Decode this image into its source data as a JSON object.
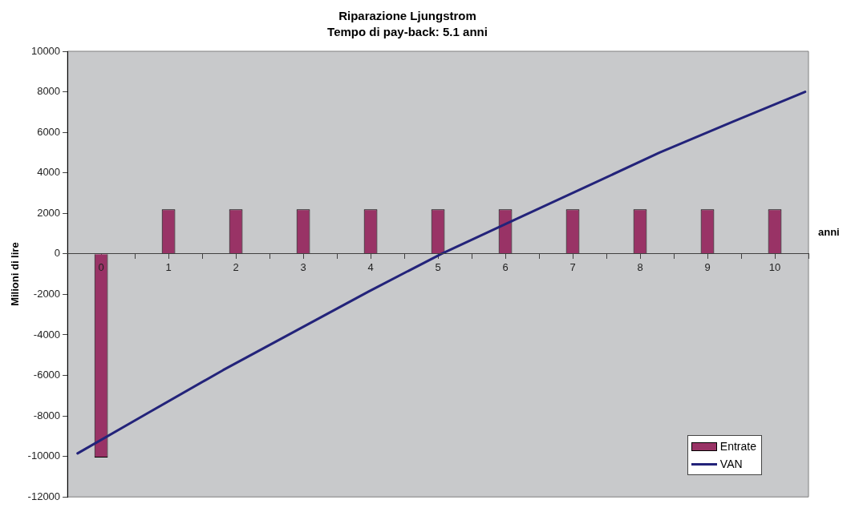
{
  "chart_data": {
    "type": "bar",
    "title": "Riparazione Ljungstrom",
    "subtitle": "Tempo di pay-back: 5.1 anni",
    "xlabel": "anni",
    "ylabel": "Milioni di lire",
    "x": [
      0,
      1,
      2,
      3,
      4,
      5,
      6,
      7,
      8,
      9,
      10
    ],
    "series": [
      {
        "name": "Entrate",
        "color": "#993366",
        "values": [
          -10050,
          2200,
          2200,
          2200,
          2200,
          2200,
          2200,
          2200,
          2200,
          2200,
          2200
        ]
      },
      {
        "name": "VAN",
        "type": "line",
        "color": "#23237a",
        "x": [
          -0.35,
          0.73,
          1.81,
          2.89,
          3.97,
          5.05,
          6.13,
          7.21,
          8.29,
          9.37,
          10.45
        ],
        "values": [
          -9850,
          -7790,
          -5740,
          -3800,
          -1860,
          0,
          1670,
          3330,
          5000,
          6510,
          8000
        ]
      }
    ],
    "xlim": [
      -0.5,
      10.5
    ],
    "xticks": [
      {
        "value": -0.5,
        "label": null
      },
      0,
      {
        "value": 0.5,
        "label": null
      },
      1,
      {
        "value": 1.5,
        "label": null
      },
      2,
      {
        "value": 2.5,
        "label": null
      },
      3,
      {
        "value": 3.5,
        "label": null
      },
      4,
      {
        "value": 4.5,
        "label": null
      },
      5,
      {
        "value": 5.5,
        "label": null
      },
      6,
      {
        "value": 6.5,
        "label": null
      },
      7,
      {
        "value": 7.5,
        "label": null
      },
      8,
      {
        "value": 8.5,
        "label": null
      },
      9,
      {
        "value": 9.5,
        "label": null
      },
      10,
      {
        "value": 10.5,
        "label": null
      }
    ],
    "ylim": [
      -12000,
      10000
    ],
    "yticks": [
      -12000,
      -10000,
      -8000,
      -6000,
      -4000,
      -2000,
      0,
      2000,
      4000,
      6000,
      8000,
      10000
    ],
    "grid": false,
    "legend": "bottom right",
    "marker": "none",
    "line_style": "solid"
  }
}
